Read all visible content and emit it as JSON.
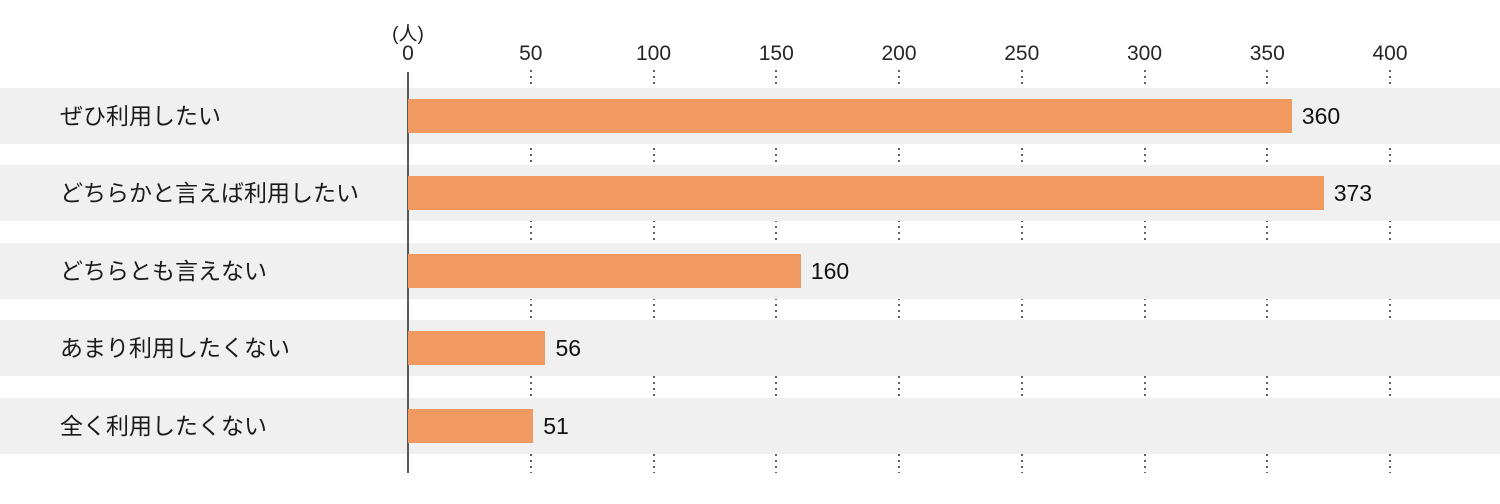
{
  "chart_data": {
    "type": "bar",
    "orientation": "horizontal",
    "title": "",
    "xlabel": "",
    "ylabel": "",
    "unit_label": "(人)",
    "categories": [
      "ぜひ利用したい",
      "どちらかと言えば利用したい",
      "どちらとも言えない",
      "あまり利用したくない",
      "全く利用したくない"
    ],
    "values": [
      360,
      373,
      160,
      56,
      51
    ],
    "value_labels": [
      "360",
      "373",
      "160",
      "56",
      "51"
    ],
    "xlim": [
      0,
      400
    ],
    "xticks": [
      0,
      50,
      100,
      150,
      200,
      250,
      300,
      350,
      400
    ],
    "grid": "dotted-vertical-between-rows",
    "legend": "none",
    "colors": {
      "bar": "#F09A62",
      "row_band": "#F0F0F0",
      "axis_line": "#595959",
      "gridline": "#636363",
      "text": "#1A1A1A"
    }
  }
}
